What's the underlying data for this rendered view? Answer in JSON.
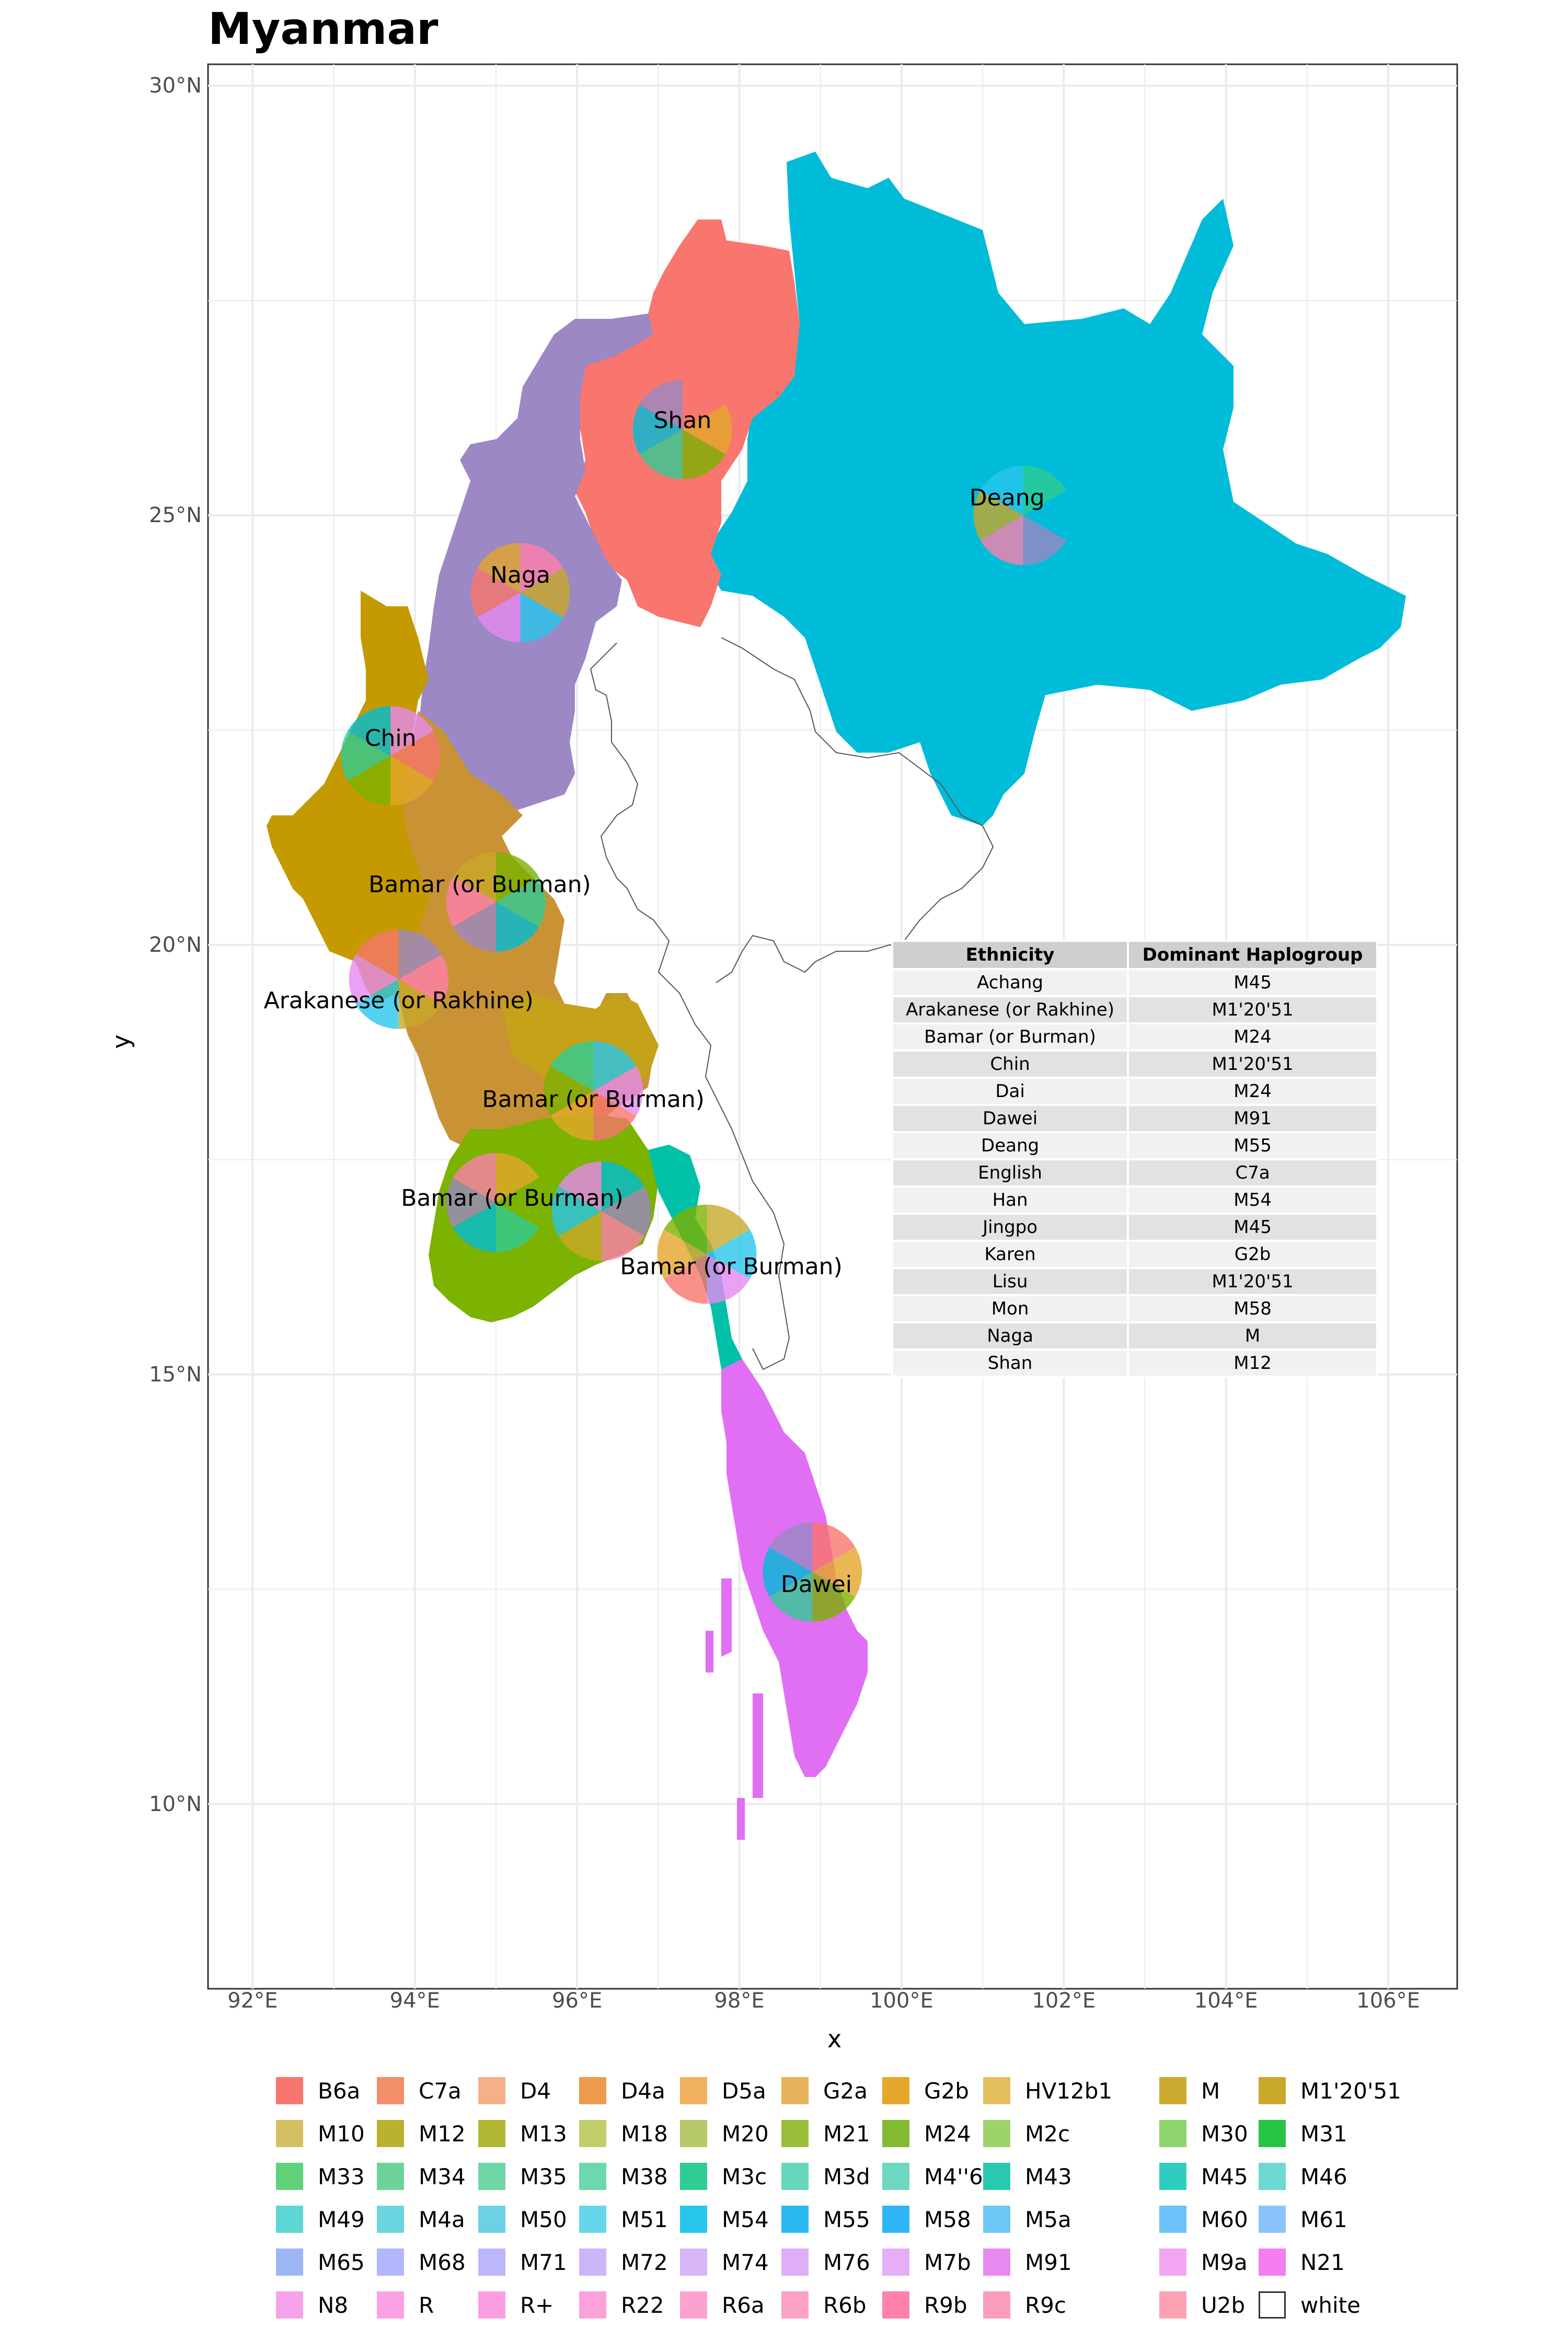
{
  "title": "Myanmar",
  "axes": {
    "xlabel": "x",
    "ylabel": "y",
    "x_ticks": [
      "92°E",
      "94°E",
      "96°E",
      "98°E",
      "100°E",
      "102°E",
      "104°E",
      "106°E"
    ],
    "y_ticks": [
      "30°N",
      "25°N",
      "20°N",
      "15°N",
      "10°N"
    ],
    "x_range": [
      91.45,
      106.85
    ],
    "y_range": [
      7.85,
      30.25
    ]
  },
  "map_labels": [
    {
      "text": "Shan",
      "lon": 97.3,
      "lat": 26.1
    },
    {
      "text": "Deang",
      "lon": 101.3,
      "lat": 25.2
    },
    {
      "text": "Naga",
      "lon": 95.3,
      "lat": 24.3
    },
    {
      "text": "Chin",
      "lon": 93.7,
      "lat": 22.4
    },
    {
      "text": "Bamar (or Burman)",
      "lon": 94.8,
      "lat": 20.7
    },
    {
      "text": "Arakanese (or Rakhine)",
      "lon": 93.8,
      "lat": 19.35
    },
    {
      "text": "Bamar (or Burman)",
      "lon": 96.2,
      "lat": 18.2
    },
    {
      "text": "Bamar (or Burman)",
      "lon": 95.2,
      "lat": 17.05
    },
    {
      "text": "Bamar (or Burman)",
      "lon": 97.9,
      "lat": 16.25
    },
    {
      "text": "Dawei",
      "lon": 98.95,
      "lat": 12.55
    }
  ],
  "region_colors": {
    "shan": "#f8766d",
    "deang": "#00bcd8",
    "naga": "#9b88c4",
    "chin": "#c49a00",
    "bamar": "#c99335",
    "bamar_green": "#7cb200",
    "mon": "#00c1a8",
    "dawei": "#e06ff4"
  },
  "table": {
    "headers": [
      "Ethnicity",
      "Dominant Haplogroup"
    ],
    "rows": [
      [
        "Achang",
        "M45"
      ],
      [
        "Arakanese (or Rakhine)",
        "M1'20'51"
      ],
      [
        "Bamar (or Burman)",
        "M24"
      ],
      [
        "Chin",
        "M1'20'51"
      ],
      [
        "Dai",
        "M24"
      ],
      [
        "Dawei",
        "M91"
      ],
      [
        "Deang",
        "M55"
      ],
      [
        "English",
        "C7a"
      ],
      [
        "Han",
        "M54"
      ],
      [
        "Jingpo",
        "M45"
      ],
      [
        "Karen",
        "G2b"
      ],
      [
        "Lisu",
        "M1'20'51"
      ],
      [
        "Mon",
        "M58"
      ],
      [
        "Naga",
        "M"
      ],
      [
        "Shan",
        "M12"
      ]
    ]
  },
  "legend": [
    {
      "label": "B6a",
      "color": "#f8766d"
    },
    {
      "label": "C7a",
      "color": "#f28e6a"
    },
    {
      "label": "D4",
      "color": "#f5b089"
    },
    {
      "label": "D4a",
      "color": "#ee9a4c"
    },
    {
      "label": "D5a",
      "color": "#f1b15e"
    },
    {
      "label": "G2a",
      "color": "#e8b35c"
    },
    {
      "label": "G2b",
      "color": "#e4a72b"
    },
    {
      "label": "HV12b1",
      "color": "#e5be60"
    },
    {
      "label": "M",
      "color": "#ccaa2f"
    },
    {
      "label": "M1'20'51",
      "color": "#c9a92a"
    },
    {
      "label": "M10",
      "color": "#d4c060"
    },
    {
      "label": "M12",
      "color": "#b9b12f"
    },
    {
      "label": "M13",
      "color": "#b2b736"
    },
    {
      "label": "M18",
      "color": "#c2cd6a"
    },
    {
      "label": "M20",
      "color": "#b5c96a"
    },
    {
      "label": "M21",
      "color": "#9abd3a"
    },
    {
      "label": "M24",
      "color": "#82ba32"
    },
    {
      "label": "M2c",
      "color": "#9ed36a"
    },
    {
      "label": "M30",
      "color": "#8fd46a"
    },
    {
      "label": "M31",
      "color": "#27c444"
    },
    {
      "label": "M33",
      "color": "#5fd27a"
    },
    {
      "label": "M34",
      "color": "#6cd49a"
    },
    {
      "label": "M35",
      "color": "#6ed6a4"
    },
    {
      "label": "M38",
      "color": "#6cd8ac"
    },
    {
      "label": "M3c",
      "color": "#2fcc94"
    },
    {
      "label": "M3d",
      "color": "#66d6bc"
    },
    {
      "label": "M4''67",
      "color": "#6cd8c2"
    },
    {
      "label": "M43",
      "color": "#29c9b0"
    },
    {
      "label": "M45",
      "color": "#2fcdbe"
    },
    {
      "label": "M46",
      "color": "#6ed8d2"
    },
    {
      "label": "M49",
      "color": "#5fd6d6"
    },
    {
      "label": "M4a",
      "color": "#6cd6e0"
    },
    {
      "label": "M50",
      "color": "#6ad2e4"
    },
    {
      "label": "M51",
      "color": "#66d6ea"
    },
    {
      "label": "M54",
      "color": "#29c6ec"
    },
    {
      "label": "M55",
      "color": "#2ab8f2"
    },
    {
      "label": "M58",
      "color": "#2fb6f6"
    },
    {
      "label": "M5a",
      "color": "#6cc6f6"
    },
    {
      "label": "M60",
      "color": "#6cc2fa"
    },
    {
      "label": "M61",
      "color": "#8cc2fa"
    },
    {
      "label": "M65",
      "color": "#9cb6f6"
    },
    {
      "label": "M68",
      "color": "#b2b6fa"
    },
    {
      "label": "M71",
      "color": "#bcb6fa"
    },
    {
      "label": "M72",
      "color": "#ccb6fa"
    },
    {
      "label": "M74",
      "color": "#d6b6f6"
    },
    {
      "label": "M76",
      "color": "#deaef6"
    },
    {
      "label": "M7b",
      "color": "#e6aef6"
    },
    {
      "label": "M91",
      "color": "#e68af2"
    },
    {
      "label": "M9a",
      "color": "#f2a6f2"
    },
    {
      "label": "N21",
      "color": "#f27ef0"
    },
    {
      "label": "N8",
      "color": "#f6a2ea"
    },
    {
      "label": "R",
      "color": "#fba2e6"
    },
    {
      "label": "R+",
      "color": "#fb9ee2"
    },
    {
      "label": "R22",
      "color": "#fba2da"
    },
    {
      "label": "R6a",
      "color": "#fba2d0"
    },
    {
      "label": "R6b",
      "color": "#fba2c6"
    },
    {
      "label": "R9b",
      "color": "#ff80ad"
    },
    {
      "label": "R9c",
      "color": "#fb9ebe"
    },
    {
      "label": "U2b",
      "color": "#fba2b2"
    },
    {
      "label": "white",
      "color": "#ffffff"
    }
  ]
}
